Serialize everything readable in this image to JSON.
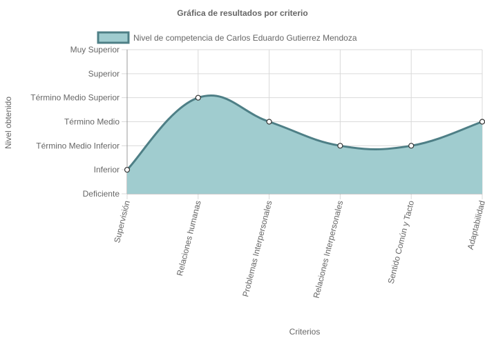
{
  "chart_data": {
    "type": "area",
    "title": "Gráfica de resultados por criterio",
    "xlabel": "Criterios",
    "ylabel": "Nivel obtenido",
    "y_levels": [
      "Deficiente",
      "Inferior",
      "Término Medio Inferior",
      "Término Medio",
      "Término Medio Superior",
      "Superior",
      "Muy Superior"
    ],
    "categories": [
      "Supervisión",
      "Relaciones humanas",
      "Problemas Interpersonales",
      "Relaciones Interpersonales",
      "Sentido Común y Tacto",
      "Adaptabilidad"
    ],
    "series": [
      {
        "name": "Nivel de competencia de Carlos Eduardo Gutierrez Mendoza",
        "values": [
          1,
          4,
          3,
          2,
          2,
          3
        ]
      }
    ],
    "ylim": [
      0,
      6
    ],
    "grid": true,
    "legend_position": "top",
    "colors": {
      "fill": "#a0cccf",
      "line": "#4e7f86",
      "grid": "#d9d9d9",
      "axis": "#999999",
      "point_fill": "#ffffff",
      "point_stroke": "#333333"
    }
  }
}
